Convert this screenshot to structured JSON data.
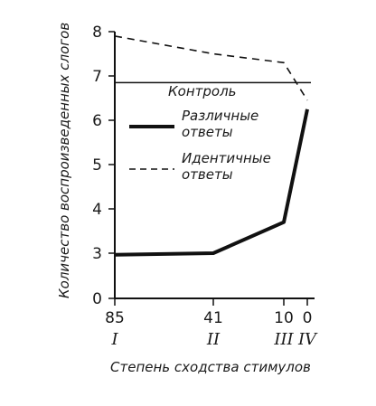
{
  "chart_data": {
    "type": "line",
    "xlabel": "Степень сходства стимулов",
    "ylabel": "Количество воспроизведенных слогов",
    "ylim": [
      0,
      8
    ],
    "y_ticks": [
      "0",
      "3",
      "4",
      "5",
      "6",
      "7",
      "8"
    ],
    "x_ticks": [
      {
        "value": "85",
        "roman": "I"
      },
      {
        "value": "41",
        "roman": "II"
      },
      {
        "value": "10",
        "roman": "III"
      },
      {
        "value": "0",
        "roman": "IV"
      }
    ],
    "reference_line": {
      "label": "Контроль",
      "value": 6.85
    },
    "legend": [
      {
        "line1": "Различные",
        "line2": "ответы",
        "style": "solid"
      },
      {
        "line1": "Идентичные",
        "line2": "ответы",
        "style": "dashed"
      }
    ],
    "series": [
      {
        "name": "Различные ответы",
        "style": "solid",
        "points": [
          [
            85,
            2.9
          ],
          [
            41,
            3.0
          ],
          [
            10,
            3.7
          ],
          [
            0,
            6.25
          ]
        ]
      },
      {
        "name": "Идентичные ответы",
        "style": "dashed",
        "points": [
          [
            85,
            7.9
          ],
          [
            41,
            7.5
          ],
          [
            10,
            7.3
          ],
          [
            0,
            6.45
          ]
        ]
      }
    ]
  }
}
